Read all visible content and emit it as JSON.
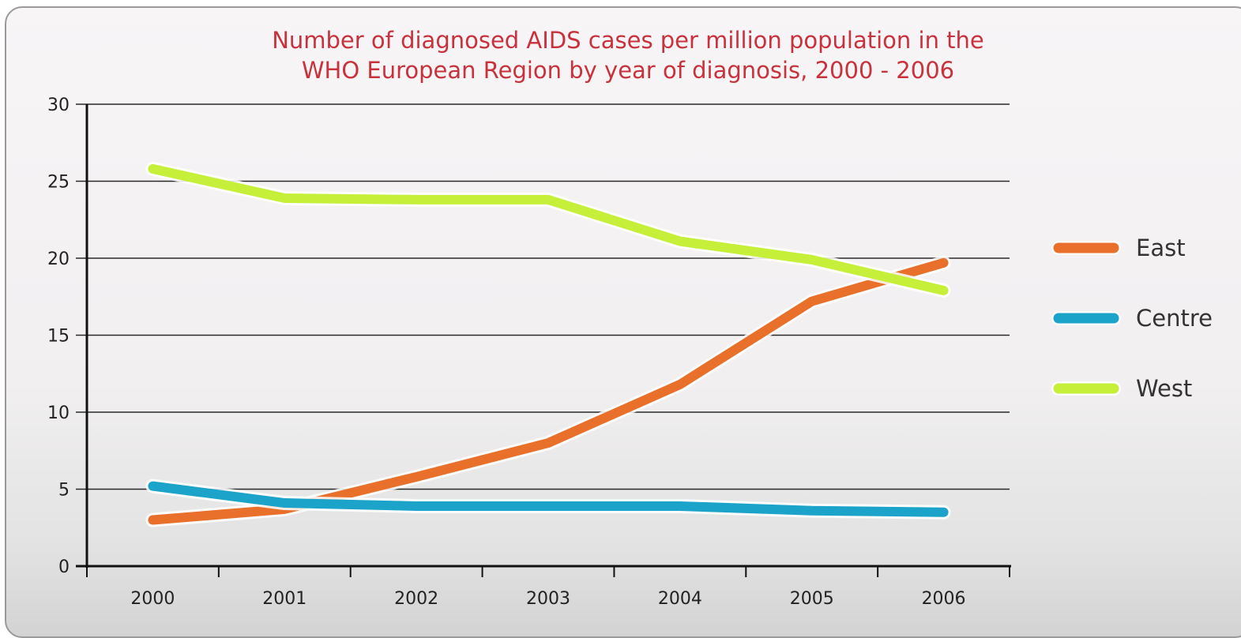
{
  "chart_data": {
    "type": "line",
    "title": "Number of diagnosed AIDS cases per million population in the WHO European Region by year of diagnosis, 2000 - 2006",
    "title_lines": [
      "Number of diagnosed AIDS cases per million population in the",
      "WHO European Region by year of diagnosis, 2000 - 2006"
    ],
    "xlabel": "",
    "ylabel": "",
    "categories": [
      "2000",
      "2001",
      "2002",
      "2003",
      "2004",
      "2005",
      "2006"
    ],
    "ylim": [
      0,
      30
    ],
    "yticks": [
      "0",
      "5",
      "10",
      "15",
      "20",
      "25",
      "30"
    ],
    "grid": true,
    "legend_position": "right",
    "series": [
      {
        "name": "East",
        "color": "#e8702a",
        "values": [
          3.0,
          3.7,
          5.8,
          8.0,
          11.8,
          17.2,
          19.7
        ]
      },
      {
        "name": "Centre",
        "color": "#1ba3c9",
        "values": [
          5.2,
          4.1,
          3.9,
          3.9,
          3.9,
          3.6,
          3.5
        ]
      },
      {
        "name": "West",
        "color": "#c6ef3a",
        "values": [
          25.8,
          23.9,
          23.8,
          23.8,
          21.1,
          19.9,
          17.9
        ]
      }
    ]
  }
}
